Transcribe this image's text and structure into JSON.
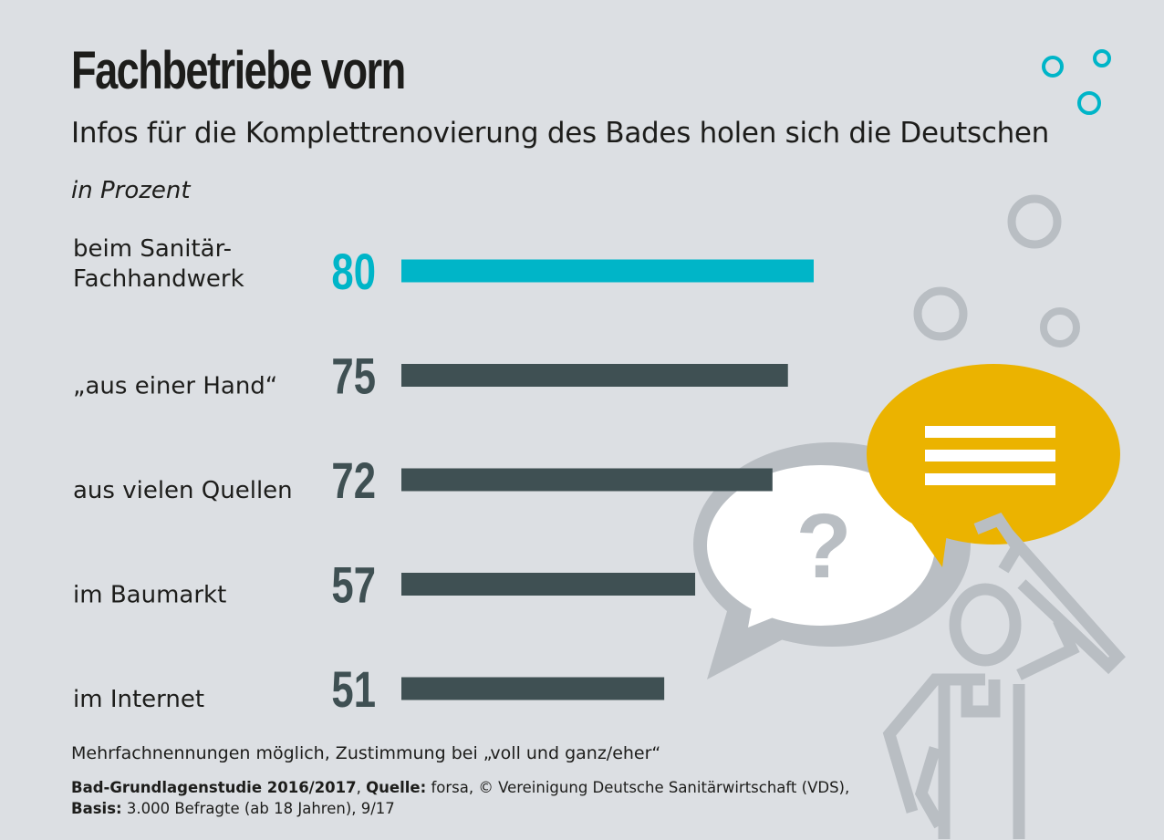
{
  "title": "Fachbetriebe vorn",
  "subtitle": "Infos für die Komplettrenovierung des Bades holen sich die Deutschen",
  "unit_label": "in Prozent",
  "chart_data": {
    "type": "bar",
    "orientation": "horizontal",
    "title": "Fachbetriebe vorn",
    "subtitle": "Infos für die Komplettrenovierung des Bades holen sich die Deutschen",
    "unit": "in Prozent",
    "categories": [
      [
        "beim Sanitär-",
        "Fachhandwerk"
      ],
      [
        "„aus einer Hand“"
      ],
      [
        "aus vielen Quellen"
      ],
      [
        "im Baumarkt"
      ],
      [
        "im Internet"
      ]
    ],
    "values": [
      80,
      75,
      72,
      57,
      51
    ],
    "xlim": [
      0,
      100
    ],
    "grid": false,
    "colors": {
      "highlight": "#00b5c8",
      "default": "#3f5053"
    }
  },
  "footnote": "Mehrfachnennungen möglich, Zustimmung bei „voll und ganz/eher“",
  "source": {
    "study_label": "Bad-Grundlagenstudie 2016/2017",
    "quelle_label": "Quelle:",
    "quelle_text": " forsa, © Vereinigung Deutsche Sanitärwirtschaft (VDS),",
    "basis_label": "Basis:",
    "basis_text": " 3.000 Befragte (ab 18 Jahren), 9/17"
  },
  "colors": {
    "background": "#dcdfe3",
    "accent_teal": "#00b5c8",
    "accent_yellow": "#ebb300",
    "illustration_grey": "#b9bec3"
  },
  "icons": [
    "bubbles-decoration",
    "question-speech-bubble-icon",
    "text-speech-bubble-icon",
    "plumber-with-wrench-illustration"
  ]
}
